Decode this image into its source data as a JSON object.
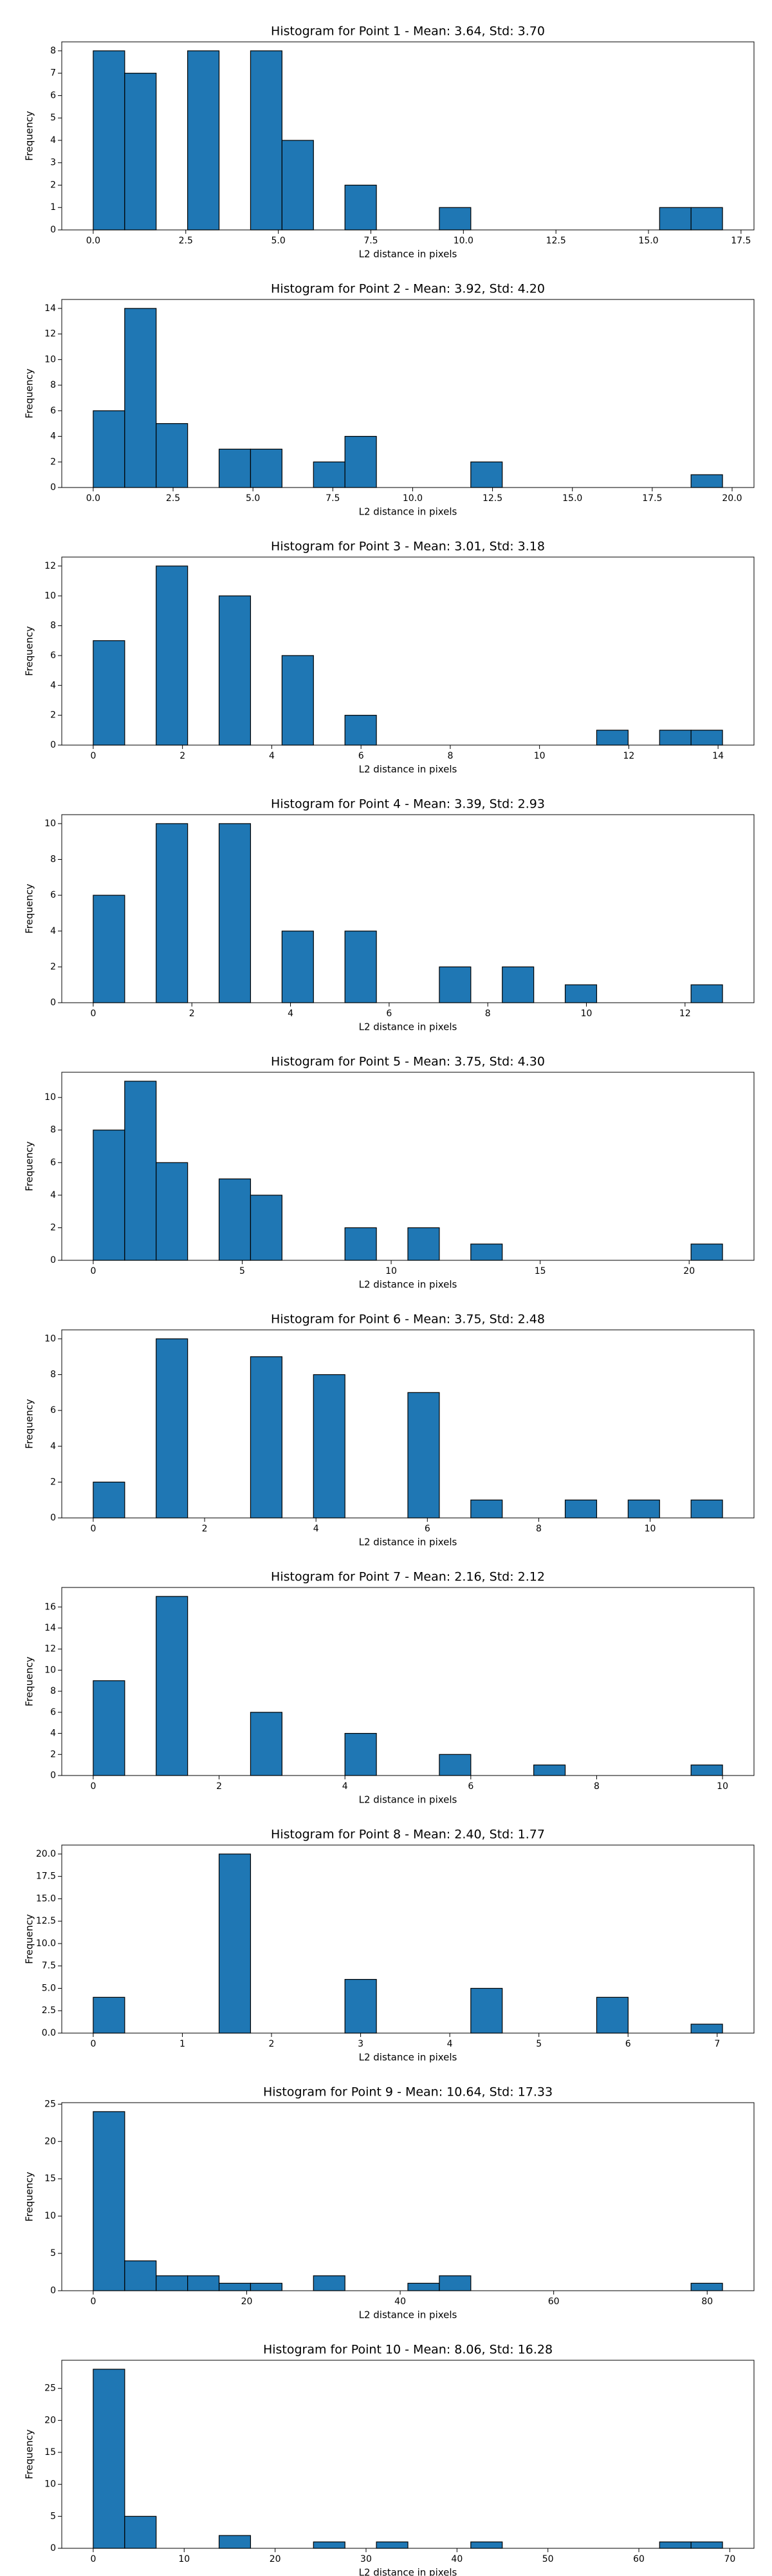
{
  "chart_data": [
    {
      "type": "histogram",
      "title": "Histogram for Point 1 - Mean: 3.64, Std: 3.70",
      "xlabel": "L2 distance in pixels",
      "ylabel": "Frequency",
      "color": "#1f77b4",
      "edgecolor": "#000000",
      "bins": [
        0,
        0.85,
        1.7,
        2.55,
        3.4,
        4.25,
        5.1,
        5.95,
        6.8,
        7.65,
        8.5,
        9.35,
        10.2,
        11.05,
        11.9,
        12.75,
        13.6,
        14.45,
        15.3,
        16.15,
        17.0
      ],
      "values": [
        8,
        7,
        0,
        8,
        0,
        8,
        4,
        0,
        2,
        0,
        0,
        1,
        0,
        0,
        0,
        0,
        0,
        0,
        1,
        1
      ],
      "xlim": [
        -0.85,
        17.85
      ],
      "ylim": [
        0,
        8.4
      ],
      "xticks": [
        {
          "value": 0,
          "label": "0.0"
        },
        2.5,
        {
          "value": 5,
          "label": "5.0"
        },
        7.5,
        {
          "value": 10,
          "label": "10.0"
        },
        12.5,
        {
          "value": 15,
          "label": "15.0"
        },
        17.5
      ],
      "yticks": [
        0,
        1,
        2,
        3,
        4,
        5,
        6,
        7,
        8
      ]
    },
    {
      "type": "histogram",
      "title": "Histogram for Point 2 - Mean: 3.92, Std: 4.20",
      "xlabel": "L2 distance in pixels",
      "ylabel": "Frequency",
      "color": "#1f77b4",
      "edgecolor": "#000000",
      "bins": [
        0,
        0.985,
        1.97,
        2.955,
        3.94,
        4.925,
        5.91,
        6.895,
        7.88,
        8.865,
        9.85,
        10.835,
        11.82,
        12.805,
        13.79,
        14.775,
        15.76,
        16.745,
        17.73,
        18.715,
        19.7
      ],
      "values": [
        6,
        14,
        5,
        0,
        3,
        3,
        0,
        2,
        4,
        0,
        0,
        0,
        2,
        0,
        0,
        0,
        0,
        0,
        0,
        1
      ],
      "xlim": [
        -0.985,
        20.685
      ],
      "ylim": [
        0,
        14.7
      ],
      "xticks": [
        {
          "value": 0,
          "label": "0.0"
        },
        2.5,
        {
          "value": 5,
          "label": "5.0"
        },
        7.5,
        {
          "value": 10,
          "label": "10.0"
        },
        12.5,
        {
          "value": 15,
          "label": "15.0"
        },
        17.5,
        {
          "value": 20,
          "label": "20.0"
        }
      ],
      "yticks": [
        0,
        2,
        4,
        6,
        8,
        10,
        12,
        14
      ]
    },
    {
      "type": "histogram",
      "title": "Histogram for Point 3 - Mean: 3.01, Std: 3.18",
      "xlabel": "L2 distance in pixels",
      "ylabel": "Frequency",
      "color": "#1f77b4",
      "edgecolor": "#000000",
      "bins": [
        0,
        0.705,
        1.41,
        2.115,
        2.82,
        3.525,
        4.23,
        4.935,
        5.64,
        6.345,
        7.05,
        7.755,
        8.46,
        9.165,
        9.87,
        10.575,
        11.28,
        11.985,
        12.69,
        13.395,
        14.1
      ],
      "values": [
        7,
        0,
        12,
        0,
        10,
        0,
        6,
        0,
        2,
        0,
        0,
        0,
        0,
        0,
        0,
        0,
        1,
        0,
        1,
        1
      ],
      "xlim": [
        -0.705,
        14.805
      ],
      "ylim": [
        0,
        12.6
      ],
      "xticks": [
        0,
        2,
        4,
        6,
        8,
        10,
        12,
        14
      ],
      "yticks": [
        0,
        2,
        4,
        6,
        8,
        10,
        12
      ]
    },
    {
      "type": "histogram",
      "title": "Histogram for Point 4 - Mean: 3.39, Std: 2.93",
      "xlabel": "L2 distance in pixels",
      "ylabel": "Frequency",
      "color": "#1f77b4",
      "edgecolor": "#000000",
      "bins": [
        0,
        0.638,
        1.276,
        1.914,
        2.552,
        3.19,
        3.828,
        4.466,
        5.104,
        5.742,
        6.38,
        7.018,
        7.656,
        8.294,
        8.932,
        9.57,
        10.208,
        10.846,
        11.484,
        12.122,
        12.76
      ],
      "values": [
        6,
        0,
        10,
        0,
        10,
        0,
        4,
        0,
        4,
        0,
        0,
        2,
        0,
        2,
        0,
        1,
        0,
        0,
        0,
        1
      ],
      "xlim": [
        -0.638,
        13.398
      ],
      "ylim": [
        0,
        10.5
      ],
      "xticks": [
        0,
        2,
        4,
        6,
        8,
        10,
        12
      ],
      "yticks": [
        0,
        2,
        4,
        6,
        8,
        10
      ]
    },
    {
      "type": "histogram",
      "title": "Histogram for Point 5 - Mean: 3.75, Std: 4.30",
      "xlabel": "L2 distance in pixels",
      "ylabel": "Frequency",
      "color": "#1f77b4",
      "edgecolor": "#000000",
      "bins": [
        0,
        1.056,
        2.112,
        3.168,
        4.224,
        5.28,
        6.336,
        7.392,
        8.448,
        9.504,
        10.56,
        11.616,
        12.672,
        13.728,
        14.784,
        15.84,
        16.896,
        17.952,
        19.008,
        20.064,
        21.12
      ],
      "values": [
        8,
        11,
        6,
        0,
        5,
        4,
        0,
        0,
        2,
        0,
        2,
        0,
        1,
        0,
        0,
        0,
        0,
        0,
        0,
        1
      ],
      "xlim": [
        -1.056,
        22.176
      ],
      "ylim": [
        0,
        11.55
      ],
      "xticks": [
        0,
        5,
        10,
        15,
        20
      ],
      "yticks": [
        0,
        2,
        4,
        6,
        8,
        10
      ]
    },
    {
      "type": "histogram",
      "title": "Histogram for Point 6 - Mean: 3.75, Std: 2.48",
      "xlabel": "L2 distance in pixels",
      "ylabel": "Frequency",
      "color": "#1f77b4",
      "edgecolor": "#000000",
      "bins": [
        0,
        0.565,
        1.13,
        1.695,
        2.26,
        2.825,
        3.39,
        3.955,
        4.52,
        5.085,
        5.65,
        6.215,
        6.78,
        7.345,
        7.91,
        8.475,
        9.04,
        9.605,
        10.17,
        10.735,
        11.3
      ],
      "values": [
        2,
        0,
        10,
        0,
        0,
        9,
        0,
        8,
        0,
        0,
        7,
        0,
        1,
        0,
        0,
        1,
        0,
        1,
        0,
        1
      ],
      "xlim": [
        -0.565,
        11.865
      ],
      "ylim": [
        0,
        10.5
      ],
      "xticks": [
        0,
        2,
        4,
        6,
        8,
        10
      ],
      "yticks": [
        0,
        2,
        4,
        6,
        8,
        10
      ]
    },
    {
      "type": "histogram",
      "title": "Histogram for Point 7 - Mean: 2.16, Std: 2.12",
      "xlabel": "L2 distance in pixels",
      "ylabel": "Frequency",
      "color": "#1f77b4",
      "edgecolor": "#000000",
      "bins": [
        0,
        0.5,
        1,
        1.5,
        2,
        2.5,
        3,
        3.5,
        4,
        4.5,
        5,
        5.5,
        6,
        6.5,
        7,
        7.5,
        8,
        8.5,
        9,
        9.5,
        10
      ],
      "values": [
        9,
        0,
        17,
        0,
        0,
        6,
        0,
        0,
        4,
        0,
        0,
        2,
        0,
        0,
        1,
        0,
        0,
        0,
        0,
        1
      ],
      "xlim": [
        -0.5,
        10.5
      ],
      "ylim": [
        0,
        17.85
      ],
      "xticks": [
        0,
        2,
        4,
        6,
        8,
        10
      ],
      "yticks": [
        0,
        2,
        4,
        6,
        8,
        10,
        12,
        14,
        16
      ]
    },
    {
      "type": "histogram",
      "title": "Histogram for Point 8 - Mean: 2.40, Std: 1.77",
      "xlabel": "L2 distance in pixels",
      "ylabel": "Frequency",
      "color": "#1f77b4",
      "edgecolor": "#000000",
      "bins": [
        0,
        0.353,
        0.706,
        1.059,
        1.412,
        1.765,
        2.118,
        2.471,
        2.824,
        3.177,
        3.53,
        3.883,
        4.236,
        4.589,
        4.942,
        5.295,
        5.648,
        6.001,
        6.354,
        6.707,
        7.06
      ],
      "values": [
        4,
        0,
        0,
        0,
        20,
        0,
        0,
        0,
        6,
        0,
        0,
        0,
        5,
        0,
        0,
        0,
        4,
        0,
        0,
        1
      ],
      "xlim": [
        -0.353,
        7.413
      ],
      "ylim": [
        0,
        21
      ],
      "xticks": [
        0,
        1,
        2,
        3,
        4,
        5,
        6,
        7
      ],
      "yticks": [
        {
          "value": 0,
          "label": "0.0"
        },
        2.5,
        {
          "value": 5,
          "label": "5.0"
        },
        7.5,
        {
          "value": 10,
          "label": "10.0"
        },
        12.5,
        {
          "value": 15,
          "label": "15.0"
        },
        17.5,
        {
          "value": 20,
          "label": "20.0"
        }
      ]
    },
    {
      "type": "histogram",
      "title": "Histogram for Point 9 - Mean: 10.64, Std: 17.33",
      "xlabel": "L2 distance in pixels",
      "ylabel": "Frequency",
      "color": "#1f77b4",
      "edgecolor": "#000000",
      "bins": [
        0,
        4.1,
        8.2,
        12.3,
        16.4,
        20.5,
        24.6,
        28.7,
        32.8,
        36.9,
        41,
        45.1,
        49.2,
        53.3,
        57.4,
        61.5,
        65.6,
        69.7,
        73.8,
        77.9,
        82
      ],
      "values": [
        24,
        4,
        2,
        2,
        1,
        1,
        0,
        2,
        0,
        0,
        1,
        2,
        0,
        0,
        0,
        0,
        0,
        0,
        0,
        1
      ],
      "xlim": [
        -4.1,
        86.1
      ],
      "ylim": [
        0,
        25.2
      ],
      "xticks": [
        0,
        20,
        40,
        60,
        80
      ],
      "yticks": [
        0,
        5,
        10,
        15,
        20,
        25
      ]
    },
    {
      "type": "histogram",
      "title": "Histogram for Point 10 - Mean: 8.06, Std: 16.28",
      "xlabel": "L2 distance in pixels",
      "ylabel": "Frequency",
      "color": "#1f77b4",
      "edgecolor": "#000000",
      "bins": [
        0,
        3.46,
        6.92,
        10.38,
        13.84,
        17.3,
        20.76,
        24.22,
        27.68,
        31.14,
        34.6,
        38.06,
        41.52,
        44.98,
        48.44,
        51.9,
        55.36,
        58.82,
        62.28,
        65.74,
        69.2
      ],
      "values": [
        28,
        5,
        0,
        0,
        2,
        0,
        0,
        1,
        0,
        1,
        0,
        0,
        1,
        0,
        0,
        0,
        0,
        0,
        1,
        1
      ],
      "xlim": [
        -3.46,
        72.66
      ],
      "ylim": [
        0,
        29.4
      ],
      "xticks": [
        0,
        10,
        20,
        30,
        40,
        50,
        60,
        70
      ],
      "yticks": [
        0,
        5,
        10,
        15,
        20,
        25
      ]
    }
  ]
}
